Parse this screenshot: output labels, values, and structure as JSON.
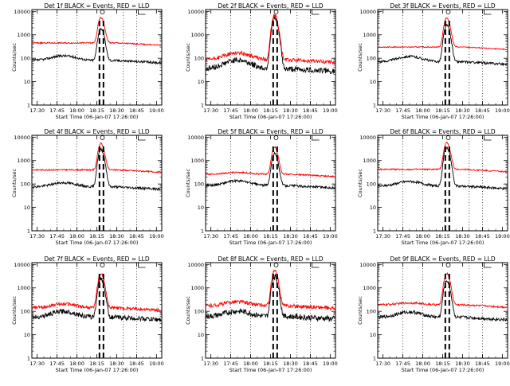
{
  "figure": {
    "x_label": "Start Time (06-Jan-07 17:26:00)",
    "y_label": "Counts/sec"
  },
  "chart_data": [
    {
      "type": "line",
      "title": "Det 1f  BLACK = Events, RED = LLD",
      "xlabel": "Start Time (06-Jan-07 17:26:00)",
      "ylabel": "Counts/sec",
      "xlim": [
        "17:26",
        "19:04"
      ],
      "ylim": [
        1,
        12000
      ],
      "yscale": "log",
      "x_ticks": [
        "17:30",
        "17:45",
        "18:00",
        "18:15",
        "18:30",
        "18:45",
        "19:00"
      ],
      "y_ticks": [
        "1",
        "10",
        "100",
        "1000",
        "10000"
      ],
      "vertical_dotted_lines": [
        "17:45",
        "18:00",
        "18:35",
        "18:45"
      ],
      "vertical_dashed_lines": [
        "18:17",
        "18:20"
      ],
      "series": [
        {
          "name": "Events",
          "color": "#000000",
          "baseline": 80,
          "hump": 1.6,
          "peak": 1800,
          "peak_time": "18:18",
          "noise": 0.05
        },
        {
          "name": "LLD",
          "color": "#ff0000",
          "baseline": 450,
          "hump": 1.0,
          "peak": 5000,
          "peak_time": "18:18",
          "noise": 0.03
        }
      ]
    },
    {
      "type": "line",
      "title": "Det 2f  BLACK = Events, RED = LLD",
      "xlabel": "Start Time (06-Jan-07 17:26:00)",
      "ylabel": "Counts/sec",
      "xlim": [
        "17:26",
        "19:04"
      ],
      "ylim": [
        1,
        12000
      ],
      "yscale": "log",
      "x_ticks": [
        "17:30",
        "17:45",
        "18:00",
        "18:15",
        "18:30",
        "18:45",
        "19:00"
      ],
      "y_ticks": [
        "1",
        "10",
        "100",
        "1000",
        "10000"
      ],
      "vertical_dotted_lines": [
        "17:45",
        "18:00",
        "18:35",
        "18:45"
      ],
      "vertical_dashed_lines": [
        "18:17",
        "18:20"
      ],
      "series": [
        {
          "name": "Events",
          "color": "#000000",
          "baseline": 35,
          "hump": 2.4,
          "peak": 5000,
          "peak_time": "18:18",
          "noise": 0.12
        },
        {
          "name": "LLD",
          "color": "#ff0000",
          "baseline": 85,
          "hump": 2.0,
          "peak": 6500,
          "peak_time": "18:18",
          "noise": 0.08
        }
      ]
    },
    {
      "type": "line",
      "title": "Det 3f  BLACK = Events, RED = LLD",
      "xlabel": "Start Time (06-Jan-07 17:26:00)",
      "ylabel": "Counts/sec",
      "xlim": [
        "17:26",
        "19:04"
      ],
      "ylim": [
        1,
        12000
      ],
      "yscale": "log",
      "x_ticks": [
        "17:30",
        "17:45",
        "18:00",
        "18:15",
        "18:30",
        "18:45",
        "19:00"
      ],
      "y_ticks": [
        "1",
        "10",
        "100",
        "1000",
        "10000"
      ],
      "vertical_dotted_lines": [
        "17:45",
        "18:00",
        "18:35",
        "18:45"
      ],
      "vertical_dashed_lines": [
        "18:17",
        "18:20"
      ],
      "series": [
        {
          "name": "Events",
          "color": "#000000",
          "baseline": 70,
          "hump": 1.7,
          "peak": 2500,
          "peak_time": "18:18",
          "noise": 0.05
        },
        {
          "name": "LLD",
          "color": "#ff0000",
          "baseline": 300,
          "hump": 1.0,
          "peak": 5000,
          "peak_time": "18:18",
          "noise": 0.02
        }
      ]
    },
    {
      "type": "line",
      "title": "Det 4f  BLACK = Events, RED = LLD",
      "xlabel": "Start Time (06-Jan-07 17:26:00)",
      "ylabel": "Counts/sec",
      "xlim": [
        "17:26",
        "19:04"
      ],
      "ylim": [
        1,
        12000
      ],
      "yscale": "log",
      "x_ticks": [
        "17:30",
        "17:45",
        "18:00",
        "18:15",
        "18:30",
        "18:45",
        "19:00"
      ],
      "y_ticks": [
        "1",
        "10",
        "100",
        "1000",
        "10000"
      ],
      "vertical_dotted_lines": [
        "17:45",
        "18:00",
        "18:35",
        "18:45"
      ],
      "vertical_dashed_lines": [
        "18:17",
        "18:20"
      ],
      "series": [
        {
          "name": "Events",
          "color": "#000000",
          "baseline": 75,
          "hump": 1.5,
          "peak": 3000,
          "peak_time": "18:18",
          "noise": 0.05
        },
        {
          "name": "LLD",
          "color": "#ff0000",
          "baseline": 400,
          "hump": 1.0,
          "peak": 5000,
          "peak_time": "18:18",
          "noise": 0.03
        }
      ]
    },
    {
      "type": "line",
      "title": "Det 5f  BLACK = Events, RED = LLD",
      "xlabel": "Start Time (06-Jan-07 17:26:00)",
      "ylabel": "Counts/sec",
      "xlim": [
        "17:26",
        "19:04"
      ],
      "ylim": [
        1,
        12000
      ],
      "yscale": "log",
      "x_ticks": [
        "17:30",
        "17:45",
        "18:00",
        "18:15",
        "18:30",
        "18:45",
        "19:00"
      ],
      "y_ticks": [
        "1",
        "10",
        "100",
        "1000",
        "10000"
      ],
      "vertical_dotted_lines": [
        "17:45",
        "18:00",
        "18:35",
        "18:45"
      ],
      "vertical_dashed_lines": [
        "18:17",
        "18:20"
      ],
      "series": [
        {
          "name": "Events",
          "color": "#000000",
          "baseline": 85,
          "hump": 1.6,
          "peak": 2000,
          "peak_time": "18:18",
          "noise": 0.05
        },
        {
          "name": "LLD",
          "color": "#ff0000",
          "baseline": 260,
          "hump": 1.2,
          "peak": 3500,
          "peak_time": "18:18",
          "noise": 0.03
        }
      ]
    },
    {
      "type": "line",
      "title": "Det 6f  BLACK = Events, RED = LLD",
      "xlabel": "Start Time (06-Jan-07 17:26:00)",
      "ylabel": "Counts/sec",
      "xlim": [
        "17:26",
        "19:04"
      ],
      "ylim": [
        1,
        12000
      ],
      "yscale": "log",
      "x_ticks": [
        "17:30",
        "17:45",
        "18:00",
        "18:15",
        "18:30",
        "18:45",
        "19:00"
      ],
      "y_ticks": [
        "1",
        "10",
        "100",
        "1000",
        "10000"
      ],
      "vertical_dotted_lines": [
        "17:45",
        "18:00",
        "18:35",
        "18:45"
      ],
      "vertical_dashed_lines": [
        "18:17",
        "18:20"
      ],
      "series": [
        {
          "name": "Events",
          "color": "#000000",
          "baseline": 80,
          "hump": 1.6,
          "peak": 3500,
          "peak_time": "18:18",
          "noise": 0.05
        },
        {
          "name": "LLD",
          "color": "#ff0000",
          "baseline": 420,
          "hump": 1.0,
          "peak": 5500,
          "peak_time": "18:18",
          "noise": 0.03
        }
      ]
    },
    {
      "type": "line",
      "title": "Det 7f  BLACK = Events, RED = LLD",
      "xlabel": "Start Time (06-Jan-07 17:26:00)",
      "ylabel": "Counts/sec",
      "xlim": [
        "17:26",
        "19:04"
      ],
      "ylim": [
        1,
        12000
      ],
      "yscale": "log",
      "x_ticks": [
        "17:30",
        "17:45",
        "18:00",
        "18:15",
        "18:30",
        "18:45",
        "19:00"
      ],
      "y_ticks": [
        "1",
        "10",
        "100",
        "1000",
        "10000"
      ],
      "vertical_dotted_lines": [
        "17:45",
        "18:00",
        "18:35",
        "18:45"
      ],
      "vertical_dashed_lines": [
        "18:17",
        "18:20"
      ],
      "series": [
        {
          "name": "Events",
          "color": "#000000",
          "baseline": 55,
          "hump": 1.8,
          "peak": 2500,
          "peak_time": "18:18",
          "noise": 0.1
        },
        {
          "name": "LLD",
          "color": "#ff0000",
          "baseline": 140,
          "hump": 1.5,
          "peak": 4000,
          "peak_time": "18:18",
          "noise": 0.07
        }
      ]
    },
    {
      "type": "line",
      "title": "Det 8f  BLACK = Events, RED = LLD",
      "xlabel": "Start Time (06-Jan-07 17:26:00)",
      "ylabel": "Counts/sec",
      "xlim": [
        "17:26",
        "19:04"
      ],
      "ylim": [
        1,
        12000
      ],
      "yscale": "log",
      "x_ticks": [
        "17:30",
        "17:45",
        "18:00",
        "18:15",
        "18:30",
        "18:45",
        "19:00"
      ],
      "y_ticks": [
        "1",
        "10",
        "100",
        "1000",
        "10000"
      ],
      "vertical_dotted_lines": [
        "17:45",
        "18:00",
        "18:35",
        "18:45"
      ],
      "vertical_dashed_lines": [
        "18:17",
        "18:20"
      ],
      "series": [
        {
          "name": "Events",
          "color": "#000000",
          "baseline": 60,
          "hump": 1.7,
          "peak": 3000,
          "peak_time": "18:18",
          "noise": 0.12
        },
        {
          "name": "LLD",
          "color": "#ff0000",
          "baseline": 170,
          "hump": 1.5,
          "peak": 5000,
          "peak_time": "18:18",
          "noise": 0.08
        }
      ]
    },
    {
      "type": "line",
      "title": "Det 9f  BLACK = Events, RED = LLD",
      "xlabel": "Start Time (06-Jan-07 17:26:00)",
      "ylabel": "Counts/sec",
      "xlim": [
        "17:26",
        "19:04"
      ],
      "ylim": [
        1,
        12000
      ],
      "yscale": "log",
      "x_ticks": [
        "17:30",
        "17:45",
        "18:00",
        "18:15",
        "18:30",
        "18:45",
        "19:00"
      ],
      "y_ticks": [
        "1",
        "10",
        "100",
        "1000",
        "10000"
      ],
      "vertical_dotted_lines": [
        "17:45",
        "18:00",
        "18:35",
        "18:45"
      ],
      "vertical_dashed_lines": [
        "18:17",
        "18:20"
      ],
      "series": [
        {
          "name": "Events",
          "color": "#000000",
          "baseline": 55,
          "hump": 1.7,
          "peak": 2000,
          "peak_time": "18:18",
          "noise": 0.07
        },
        {
          "name": "LLD",
          "color": "#ff0000",
          "baseline": 190,
          "hump": 1.2,
          "peak": 4000,
          "peak_time": "18:18",
          "noise": 0.04
        }
      ]
    }
  ]
}
